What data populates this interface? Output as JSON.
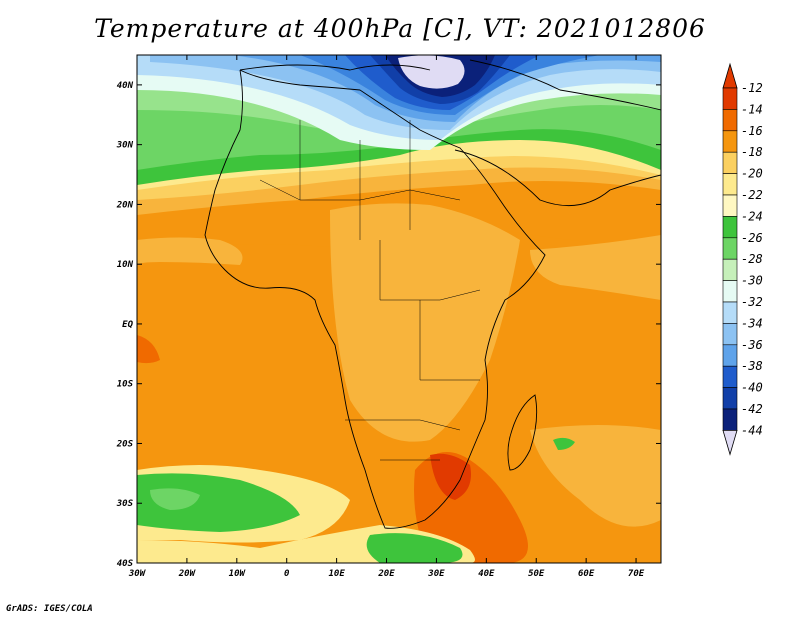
{
  "title": "Temperature at 400hPa [C], VT: 2021012806",
  "credit": "GrADS: IGES/COLA",
  "map": {
    "lon_range": [
      -30,
      75
    ],
    "lat_range": [
      -40,
      45
    ],
    "lon_ticks": [
      {
        "value": -30,
        "label": "30W"
      },
      {
        "value": -20,
        "label": "20W"
      },
      {
        "value": -10,
        "label": "10W"
      },
      {
        "value": 0,
        "label": "0"
      },
      {
        "value": 10,
        "label": "10E"
      },
      {
        "value": 20,
        "label": "20E"
      },
      {
        "value": 30,
        "label": "30E"
      },
      {
        "value": 40,
        "label": "40E"
      },
      {
        "value": 50,
        "label": "50E"
      },
      {
        "value": 60,
        "label": "60E"
      },
      {
        "value": 70,
        "label": "70E"
      }
    ],
    "lat_ticks": [
      {
        "value": 40,
        "label": "40N"
      },
      {
        "value": 30,
        "label": "30N"
      },
      {
        "value": 20,
        "label": "20N"
      },
      {
        "value": 10,
        "label": "10N"
      },
      {
        "value": 0,
        "label": "EQ"
      },
      {
        "value": -10,
        "label": "10S"
      },
      {
        "value": -20,
        "label": "20S"
      },
      {
        "value": -30,
        "label": "30S"
      },
      {
        "value": -40,
        "label": "40S"
      }
    ]
  },
  "colorbar": {
    "labels": [
      "-12",
      "-14",
      "-16",
      "-18",
      "-20",
      "-22",
      "-24",
      "-26",
      "-28",
      "-30",
      "-32",
      "-34",
      "-36",
      "-38",
      "-40",
      "-42",
      "-44"
    ],
    "colors": [
      "#e13a00",
      "#f06a00",
      "#f5960f",
      "#f8b43c",
      "#fbd060",
      "#fdea8e",
      "#fff8c2",
      "#3ec43c",
      "#6dd565",
      "#97e38c",
      "#c6f0ba",
      "#e6fbf4",
      "#b5dcf8",
      "#8cc2f2",
      "#5fa3ea",
      "#3a83de",
      "#1f5ccc",
      "#113fa8",
      "#0b217a"
    ],
    "top_color": "#e13a00",
    "bottom_color": "#e0dcf4"
  }
}
